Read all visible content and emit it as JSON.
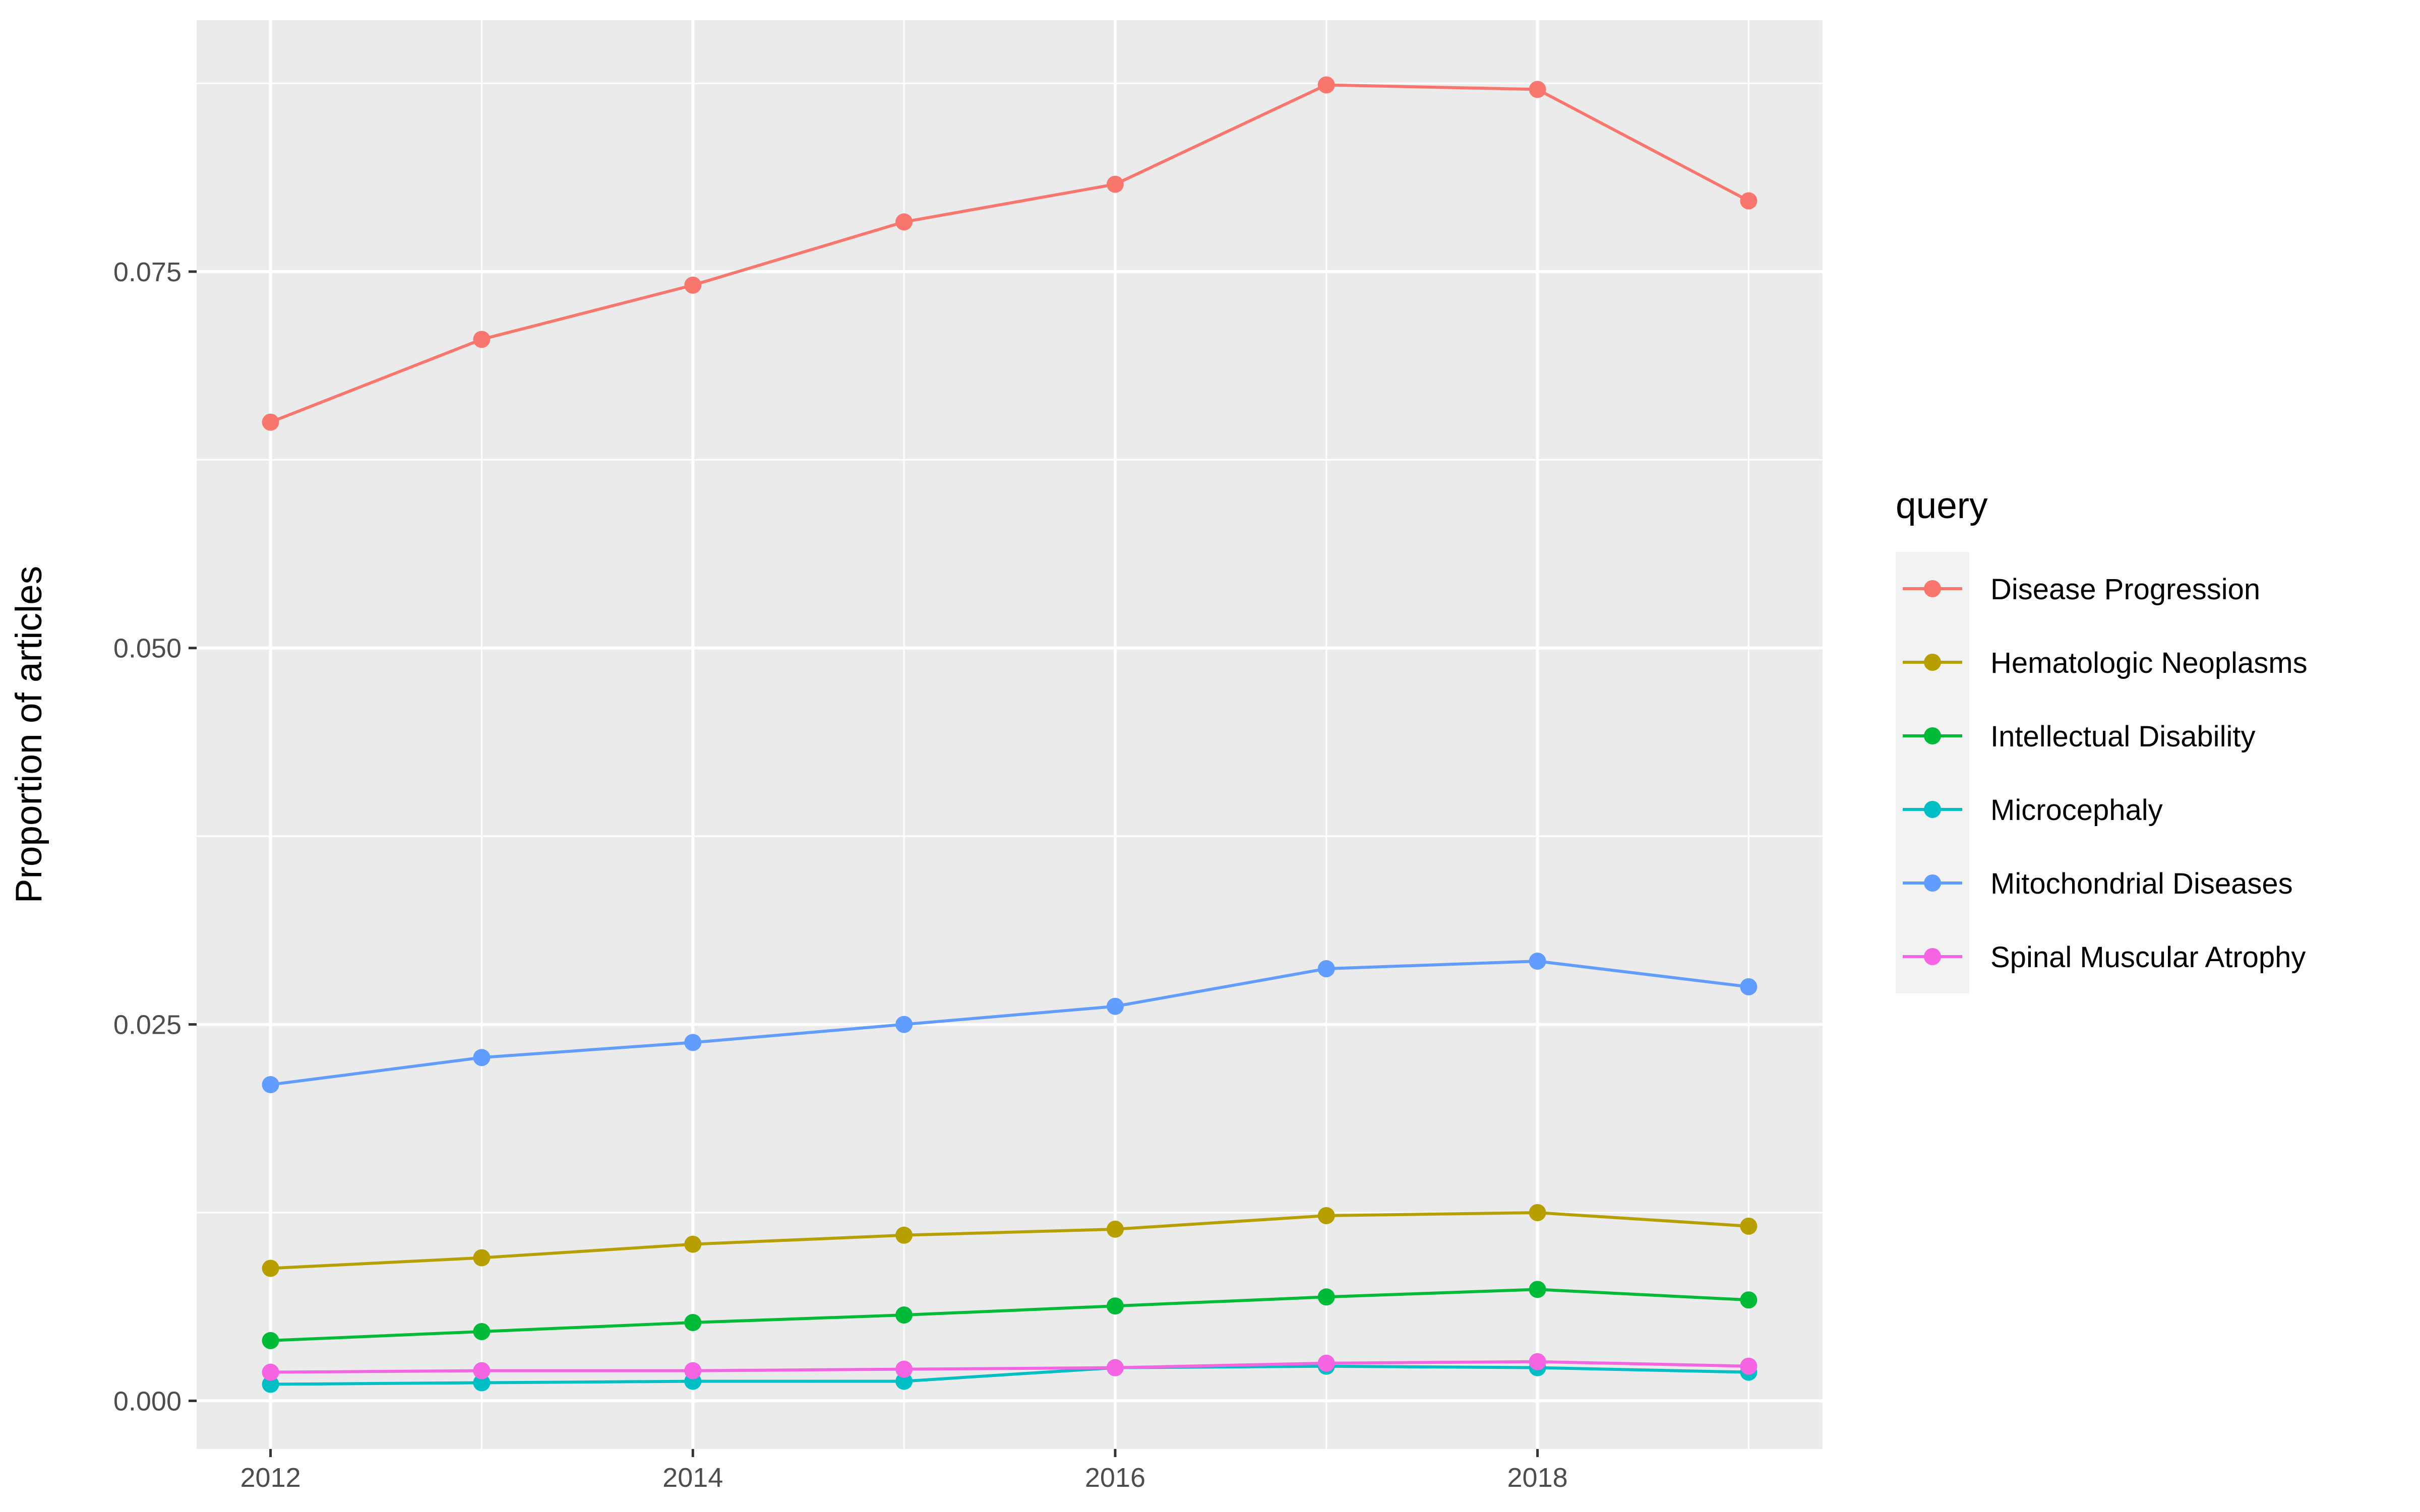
{
  "chart_data": {
    "type": "line",
    "title": "",
    "xlabel": "",
    "ylabel": "Proportion of articles",
    "x": [
      2012,
      2013,
      2014,
      2015,
      2016,
      2017,
      2018,
      2019
    ],
    "x_ticks": [
      2012,
      2014,
      2016,
      2018
    ],
    "y_ticks": [
      0.0,
      0.025,
      0.05,
      0.075
    ],
    "y_tick_labels": [
      "0.000",
      "0.025",
      "0.050",
      "0.075"
    ],
    "xlim": [
      2011.65,
      2019.35
    ],
    "ylim": [
      -0.0032,
      0.0917
    ],
    "grid": true,
    "legend": {
      "title": "query",
      "position": "right"
    },
    "series": [
      {
        "name": "Disease Progression",
        "color": "#F8766D",
        "values": [
          0.065,
          0.0705,
          0.0741,
          0.0783,
          0.0808,
          0.0874,
          0.0871,
          0.0797
        ]
      },
      {
        "name": "Hematologic Neoplasms",
        "color": "#B79F00",
        "values": [
          0.0088,
          0.0095,
          0.0104,
          0.011,
          0.0114,
          0.0123,
          0.0125,
          0.0116
        ]
      },
      {
        "name": "Intellectual Disability",
        "color": "#00BA38",
        "values": [
          0.004,
          0.0046,
          0.0052,
          0.0057,
          0.0063,
          0.0069,
          0.0074,
          0.0067
        ]
      },
      {
        "name": "Microcephaly",
        "color": "#00BFC4",
        "values": [
          0.0011,
          0.0012,
          0.0013,
          0.0013,
          0.0022,
          0.0023,
          0.0022,
          0.0019
        ]
      },
      {
        "name": "Mitochondrial Diseases",
        "color": "#619CFF",
        "values": [
          0.021,
          0.0228,
          0.0238,
          0.025,
          0.0262,
          0.0287,
          0.0292,
          0.0275
        ]
      },
      {
        "name": "Spinal Muscular Atrophy",
        "color": "#F564E3",
        "values": [
          0.0019,
          0.002,
          0.002,
          0.0021,
          0.0022,
          0.0025,
          0.0026,
          0.0023
        ]
      }
    ]
  }
}
